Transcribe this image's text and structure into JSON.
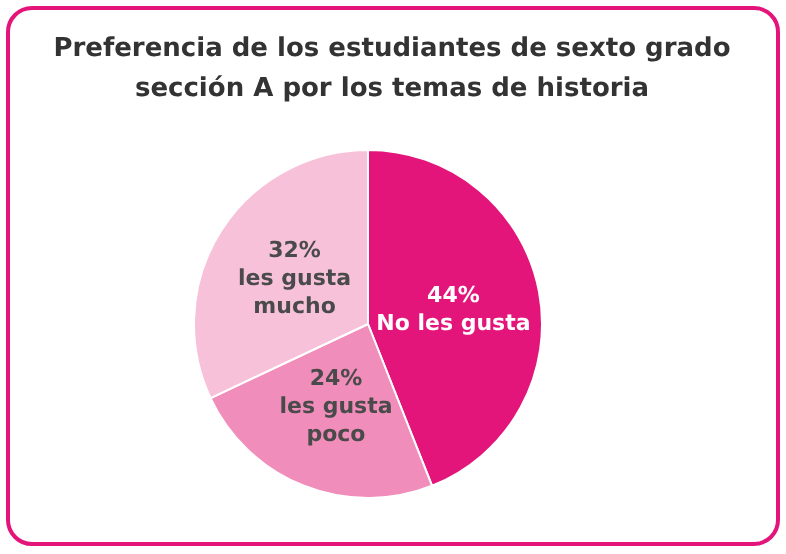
{
  "chart_data": {
    "type": "pie",
    "title": "Preferencia de los estudiantes de sexto grado sección A por los temas de historia",
    "categories": [
      "No les gusta",
      "les gusta poco",
      "les gusta mucho"
    ],
    "values": [
      44,
      24,
      32
    ],
    "colors": [
      "#e3157b",
      "#f08dba",
      "#f7c2d9"
    ],
    "value_labels": [
      "44%",
      "24%",
      "32%"
    ]
  }
}
